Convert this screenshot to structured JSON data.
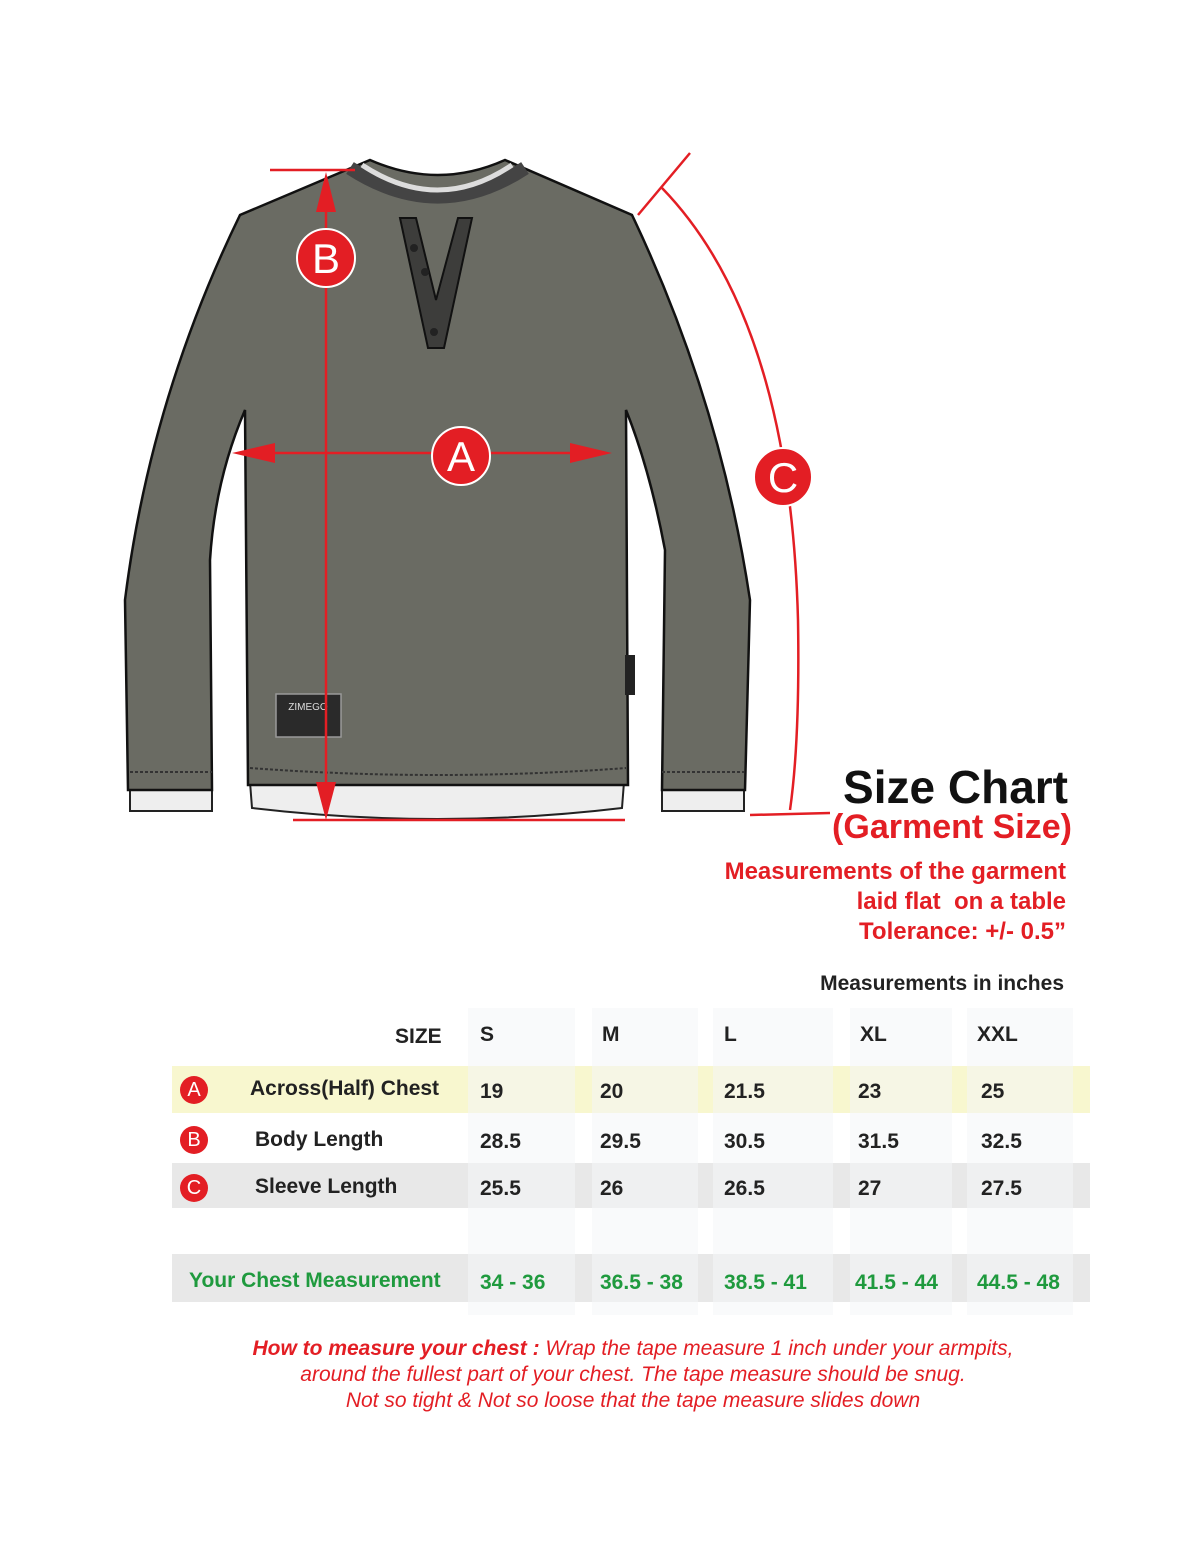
{
  "illustration": {
    "logo_text": "ZIMEGO",
    "markers": {
      "a": "A",
      "b": "B",
      "c": "C"
    },
    "colors": {
      "shirt": "#6a6b63",
      "accent": "#e31e24"
    }
  },
  "header": {
    "title": "Size Chart",
    "subtitle": "(Garment Size)",
    "notes": [
      "Measurements of the garment",
      "laid flat  on a table",
      "Tolerance: +/- 0.5”"
    ],
    "units": "Measurements in inches"
  },
  "table": {
    "size_label": "SIZE",
    "sizes": [
      "S",
      "M",
      "L",
      "XL",
      "XXL"
    ],
    "rows": [
      {
        "marker": "A",
        "label": "Across(Half) Chest",
        "values": [
          "19",
          "20",
          "21.5",
          "23",
          "25"
        ]
      },
      {
        "marker": "B",
        "label": "Body Length",
        "values": [
          "28.5",
          "29.5",
          "30.5",
          "31.5",
          "32.5"
        ]
      },
      {
        "marker": "C",
        "label": "Sleeve Length",
        "values": [
          "25.5",
          "26",
          "26.5",
          "27",
          "27.5"
        ]
      }
    ],
    "chest": {
      "label": "Your Chest Measurement",
      "values": [
        "34 - 36",
        "36.5 - 38",
        "38.5 - 41",
        "41.5 - 44",
        "44.5 - 48"
      ]
    },
    "colors": {
      "row_a": "#f4f3c8",
      "row_c": "#e6e6e6",
      "green": "#1f9a3e"
    }
  },
  "howto": {
    "lead": "How to measure your chest :",
    "line1": " Wrap the tape measure 1 inch under your armpits,",
    "line2": "around the fullest part of your chest. The tape measure should be snug.",
    "line3": "Not so tight & Not so loose that the tape measure slides down"
  }
}
